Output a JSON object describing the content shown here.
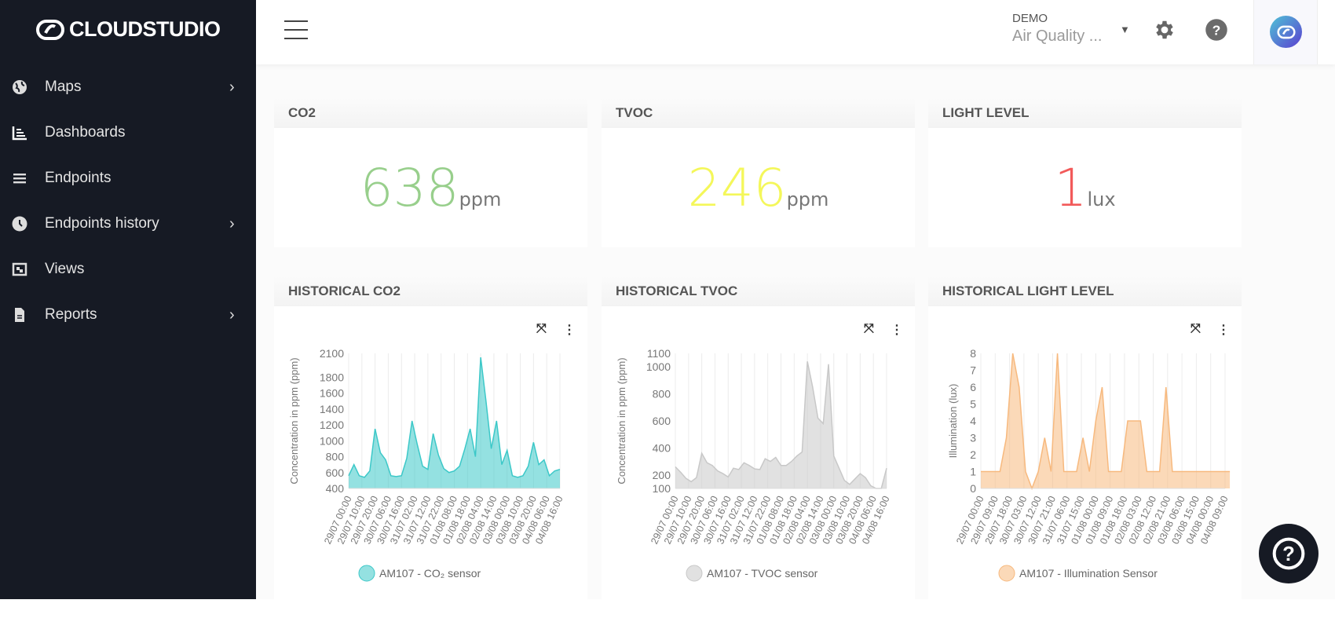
{
  "brand": {
    "name": "CLOUDSTUDIO"
  },
  "sidebar": {
    "items": [
      {
        "label": "Maps",
        "icon": "globe-icon",
        "has_submenu": true
      },
      {
        "label": "Dashboards",
        "icon": "chart-bar-icon",
        "has_submenu": false,
        "active": true
      },
      {
        "label": "Endpoints",
        "icon": "list-icon",
        "has_submenu": false
      },
      {
        "label": "Endpoints history",
        "icon": "clock-icon",
        "has_submenu": true
      },
      {
        "label": "Views",
        "icon": "views-icon",
        "has_submenu": false
      },
      {
        "label": "Reports",
        "icon": "file-icon",
        "has_submenu": true
      }
    ]
  },
  "header": {
    "org": "DEMO",
    "dashboard": "Air Quality ...",
    "icons": [
      "menu-icon",
      "gear-icon",
      "help-icon",
      "avatar"
    ]
  },
  "kpis": [
    {
      "title": "CO2",
      "value": "638",
      "unit": "ppm",
      "color": "#98cf8c"
    },
    {
      "title": "TVOC",
      "value": "246",
      "unit": "ppm",
      "color": "#f4f75a"
    },
    {
      "title": "LIGHT LEVEL",
      "value": "1",
      "unit": "lux",
      "color": "#f25a5a"
    }
  ],
  "chart_data": [
    {
      "title": "HISTORICAL CO2",
      "type": "area",
      "ylabel": "Concentration in ppm (ppm)",
      "ylim": [
        400,
        2100
      ],
      "yticks": [
        400,
        600,
        800,
        1000,
        1200,
        1400,
        1600,
        1800,
        2100
      ],
      "xticks": [
        "29/07 00:00",
        "29/07 10:00",
        "29/07 20:00",
        "30/07 06:00",
        "30/07 16:00",
        "31/07 02:00",
        "31/07 12:00",
        "31/07 22:00",
        "01/08 08:00",
        "01/08 18:00",
        "02/08 04:00",
        "02/08 14:00",
        "03/08 00:00",
        "03/08 10:00",
        "03/08 20:00",
        "04/08 06:00",
        "04/08 16:00"
      ],
      "grid": "vertical",
      "legend": "bottom",
      "color": "#3cc8c8",
      "series": [
        {
          "name": "AM107 - CO₂ sensor",
          "x": [
            "29/07 00:00",
            "29/07 04:00",
            "29/07 08:00",
            "29/07 12:00",
            "29/07 16:00",
            "29/07 20:00",
            "30/07 00:00",
            "30/07 04:00",
            "30/07 08:00",
            "30/07 12:00",
            "30/07 16:00",
            "30/07 20:00",
            "31/07 00:00",
            "31/07 04:00",
            "31/07 08:00",
            "31/07 12:00",
            "31/07 16:00",
            "31/07 20:00",
            "01/08 00:00",
            "01/08 04:00",
            "01/08 08:00",
            "01/08 12:00",
            "01/08 16:00",
            "01/08 20:00",
            "02/08 00:00",
            "02/08 04:00",
            "02/08 08:00",
            "02/08 12:00",
            "02/08 16:00",
            "02/08 20:00",
            "03/08 00:00",
            "03/08 04:00",
            "03/08 08:00",
            "03/08 12:00",
            "03/08 16:00",
            "03/08 20:00",
            "04/08 00:00",
            "04/08 04:00",
            "04/08 08:00",
            "04/08 12:00",
            "04/08 16:00"
          ],
          "y": [
            560,
            700,
            560,
            540,
            620,
            1150,
            850,
            760,
            560,
            550,
            560,
            780,
            1250,
            950,
            680,
            640,
            1090,
            820,
            650,
            600,
            620,
            680,
            900,
            1150,
            800,
            2050,
            1500,
            900,
            1250,
            700,
            880,
            560,
            540,
            560,
            680,
            980,
            700,
            760,
            560,
            620,
            640
          ]
        }
      ]
    },
    {
      "title": "HISTORICAL TVOC",
      "type": "area",
      "ylabel": "Concentration in ppm (ppm)",
      "ylim": [
        100,
        1100
      ],
      "yticks": [
        100,
        200,
        400,
        600,
        800,
        1000,
        1100
      ],
      "xticks": [
        "29/07 00:00",
        "29/07 10:00",
        "29/07 20:00",
        "30/07 06:00",
        "30/07 16:00",
        "31/07 02:00",
        "31/07 12:00",
        "31/07 22:00",
        "01/08 08:00",
        "01/08 18:00",
        "02/08 04:00",
        "02/08 14:00",
        "03/08 00:00",
        "03/08 10:00",
        "03/08 20:00",
        "04/08 06:00",
        "04/08 16:00"
      ],
      "grid": "vertical",
      "legend": "bottom",
      "color": "#c8c8c8",
      "series": [
        {
          "name": "AM107 - TVOC sensor",
          "x": [
            "29/07 00:00",
            "29/07 04:00",
            "29/07 08:00",
            "29/07 12:00",
            "29/07 16:00",
            "29/07 20:00",
            "30/07 00:00",
            "30/07 04:00",
            "30/07 08:00",
            "30/07 12:00",
            "30/07 16:00",
            "30/07 20:00",
            "31/07 00:00",
            "31/07 04:00",
            "31/07 08:00",
            "31/07 12:00",
            "31/07 16:00",
            "31/07 20:00",
            "01/08 00:00",
            "01/08 04:00",
            "01/08 08:00",
            "01/08 12:00",
            "01/08 16:00",
            "01/08 20:00",
            "02/08 00:00",
            "02/08 04:00",
            "02/08 08:00",
            "02/08 12:00",
            "02/08 16:00",
            "02/08 20:00",
            "03/08 00:00",
            "03/08 04:00",
            "03/08 08:00",
            "03/08 12:00",
            "03/08 16:00",
            "03/08 20:00",
            "04/08 00:00",
            "04/08 04:00",
            "04/08 08:00",
            "04/08 12:00",
            "04/08 16:00"
          ],
          "y": [
            260,
            220,
            175,
            150,
            180,
            360,
            290,
            270,
            230,
            210,
            185,
            250,
            240,
            290,
            270,
            245,
            240,
            320,
            300,
            330,
            270,
            270,
            300,
            340,
            370,
            1040,
            850,
            620,
            580,
            1020,
            340,
            250,
            160,
            130,
            170,
            210,
            180,
            120,
            100,
            100,
            250
          ]
        }
      ]
    },
    {
      "title": "HISTORICAL LIGHT LEVEL",
      "type": "area",
      "ylabel": "Illumination (lux)",
      "ylim": [
        0,
        8
      ],
      "yticks": [
        0,
        1,
        2,
        3,
        4,
        5,
        6,
        7,
        8
      ],
      "xticks": [
        "29/07 00:00",
        "29/07 09:00",
        "29/07 18:00",
        "30/07 03:00",
        "30/07 12:00",
        "30/07 21:00",
        "31/07 06:00",
        "31/07 15:00",
        "01/08 00:00",
        "01/08 09:00",
        "01/08 18:00",
        "02/08 03:00",
        "02/08 12:00",
        "02/08 21:00",
        "03/08 06:00",
        "03/08 15:00",
        "04/08 00:00",
        "04/08 09:00"
      ],
      "grid": "vertical",
      "legend": "bottom",
      "color": "#f7b97e",
      "series": [
        {
          "name": "AM107 - Illumination Sensor",
          "x": [
            "29/07 00:00",
            "29/07 04:00",
            "29/07 08:00",
            "29/07 12:00",
            "29/07 16:00",
            "29/07 20:00",
            "30/07 00:00",
            "30/07 04:00",
            "30/07 08:00",
            "30/07 12:00",
            "30/07 16:00",
            "30/07 20:00",
            "31/07 00:00",
            "31/07 04:00",
            "31/07 08:00",
            "31/07 12:00",
            "31/07 16:00",
            "31/07 20:00",
            "01/08 00:00",
            "01/08 04:00",
            "01/08 08:00",
            "01/08 12:00",
            "01/08 16:00",
            "01/08 20:00",
            "02/08 00:00",
            "02/08 04:00",
            "02/08 08:00",
            "02/08 12:00",
            "02/08 16:00",
            "02/08 20:00",
            "03/08 00:00",
            "03/08 04:00",
            "03/08 08:00",
            "03/08 12:00",
            "03/08 16:00",
            "03/08 20:00",
            "04/08 00:00",
            "04/08 04:00",
            "04/08 08:00",
            "04/08 12:00"
          ],
          "y": [
            1,
            1,
            1,
            1,
            3,
            8,
            6,
            1,
            0,
            1,
            3,
            1,
            8,
            1,
            1,
            1,
            3,
            1,
            4,
            6,
            1,
            1,
            1,
            4,
            4,
            4,
            1,
            1,
            1,
            6,
            1,
            1,
            1,
            1,
            1,
            1,
            1,
            1,
            1,
            1
          ]
        }
      ]
    }
  ]
}
